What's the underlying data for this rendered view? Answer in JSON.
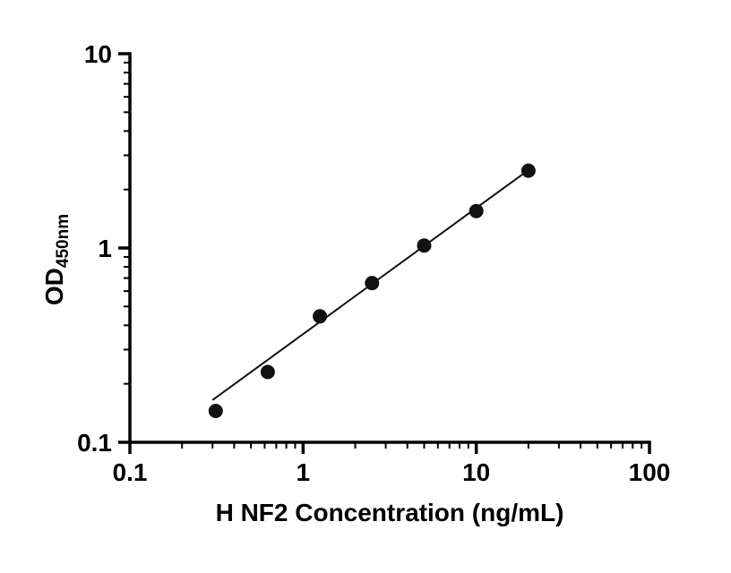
{
  "figure": {
    "background": "#ffffff"
  },
  "chart_data": {
    "type": "scatter",
    "title": "",
    "xlabel": "H NF2 Concentration (ng/mL)",
    "ylabel": "OD",
    "ylabel_subscript": "450nm",
    "xscale": "log",
    "yscale": "log",
    "xlim": [
      0.1,
      100
    ],
    "ylim": [
      0.1,
      10
    ],
    "grid": false,
    "legend_position": "none",
    "x": [
      0.313,
      0.625,
      1.25,
      2.5,
      5,
      10,
      20
    ],
    "y": [
      0.145,
      0.23,
      0.445,
      0.66,
      1.03,
      1.55,
      2.5
    ],
    "x_ticks": [
      {
        "value": 0.1,
        "label": "0.1"
      },
      {
        "value": 1,
        "label": "1"
      },
      {
        "value": 10,
        "label": "10"
      },
      {
        "value": 100,
        "label": "100"
      }
    ],
    "y_ticks": [
      {
        "value": 0.1,
        "label": "0.1"
      },
      {
        "value": 1,
        "label": "1"
      },
      {
        "value": 10,
        "label": "10"
      }
    ],
    "trendline": {
      "x": [
        0.3,
        20
      ],
      "y": [
        0.165,
        2.52
      ]
    },
    "marker": {
      "shape": "circle",
      "radius": 8,
      "color": "#111111"
    },
    "line_color": "#111111",
    "axis_color": "#000000"
  }
}
